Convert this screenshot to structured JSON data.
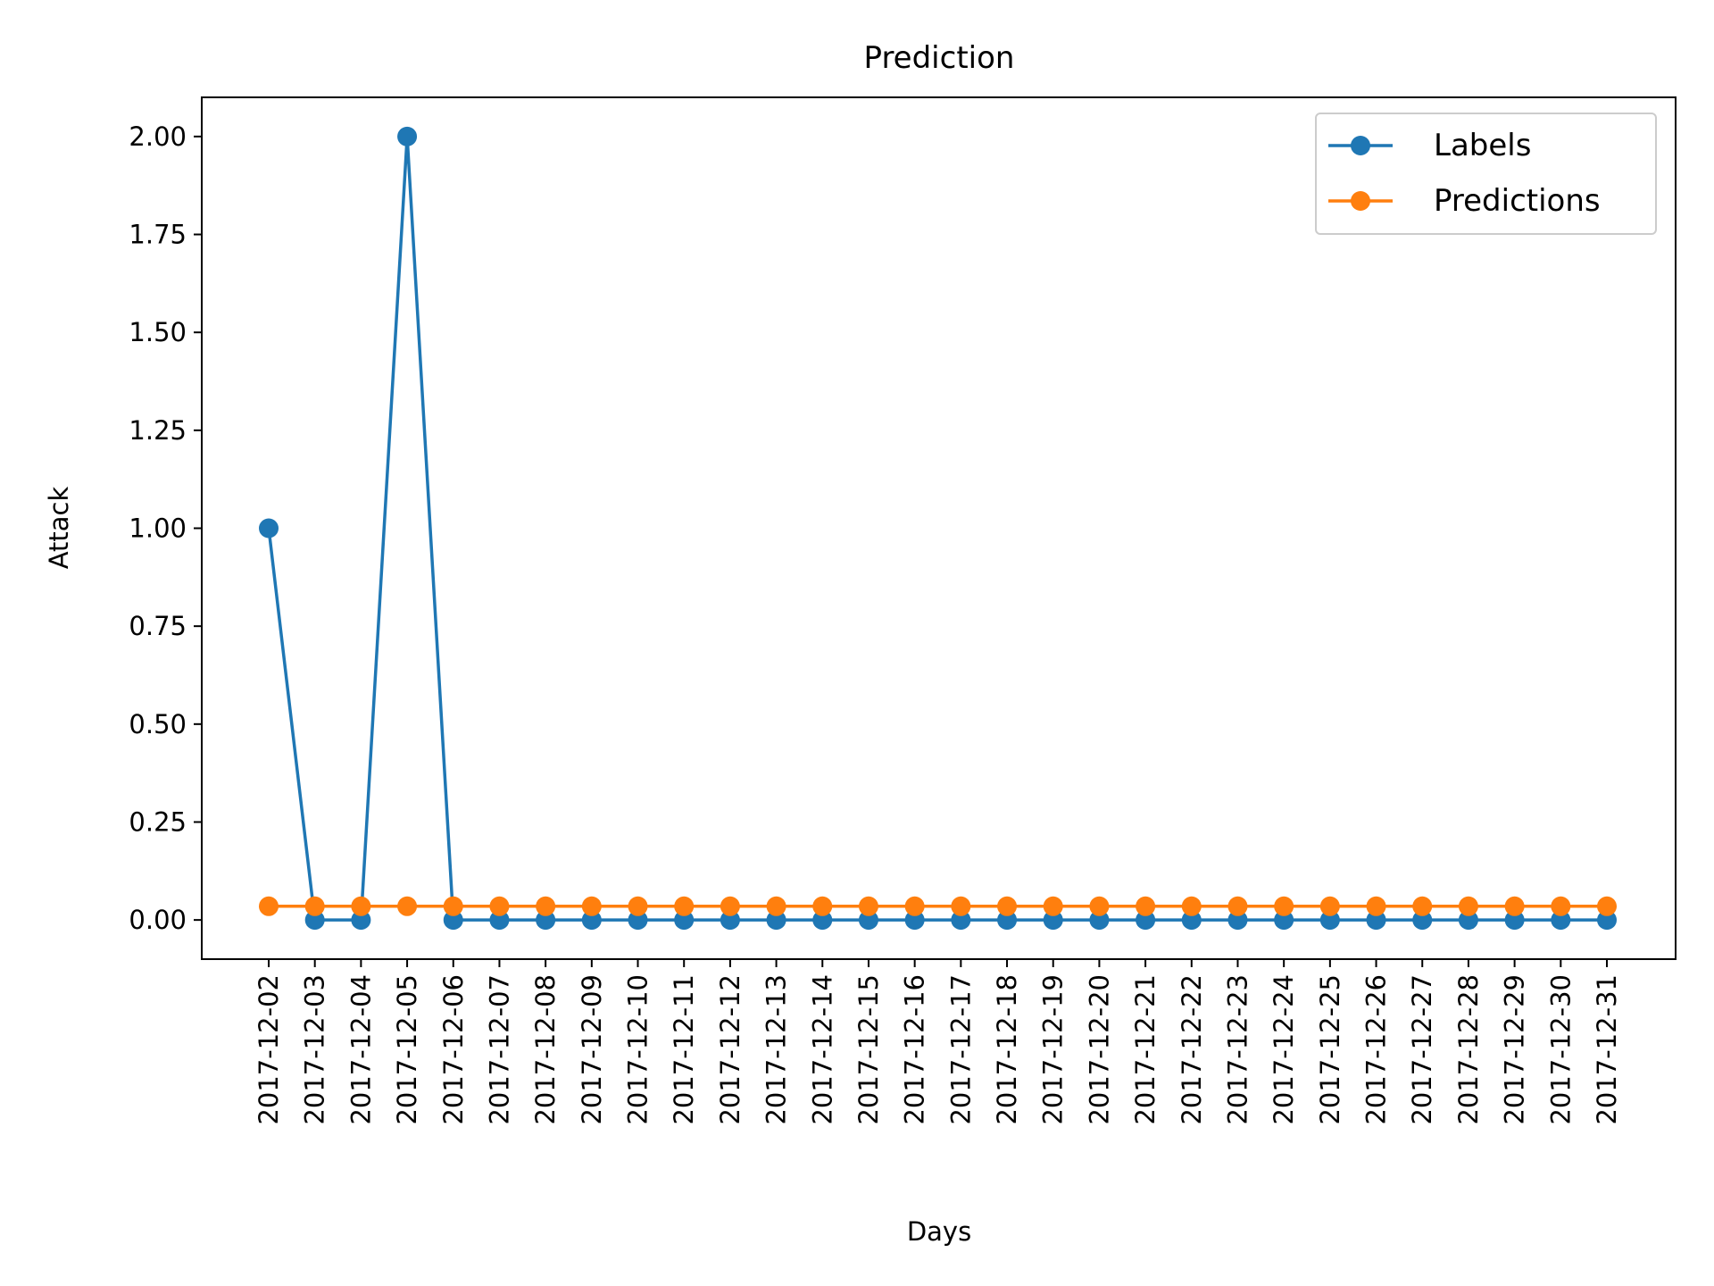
{
  "chart_data": {
    "type": "line",
    "title": "Prediction",
    "xlabel": "Days",
    "ylabel": "Attack",
    "x": [
      "2017-12-02",
      "2017-12-03",
      "2017-12-04",
      "2017-12-05",
      "2017-12-06",
      "2017-12-07",
      "2017-12-08",
      "2017-12-09",
      "2017-12-10",
      "2017-12-11",
      "2017-12-12",
      "2017-12-13",
      "2017-12-14",
      "2017-12-15",
      "2017-12-16",
      "2017-12-17",
      "2017-12-18",
      "2017-12-19",
      "2017-12-20",
      "2017-12-21",
      "2017-12-22",
      "2017-12-23",
      "2017-12-24",
      "2017-12-25",
      "2017-12-26",
      "2017-12-27",
      "2017-12-28",
      "2017-12-29",
      "2017-12-30",
      "2017-12-31"
    ],
    "series": [
      {
        "name": "Labels",
        "color": "#1f77b4",
        "values": [
          1,
          0,
          0,
          2,
          0,
          0,
          0,
          0,
          0,
          0,
          0,
          0,
          0,
          0,
          0,
          0,
          0,
          0,
          0,
          0,
          0,
          0,
          0,
          0,
          0,
          0,
          0,
          0,
          0,
          0
        ]
      },
      {
        "name": "Predictions",
        "color": "#ff7f0e",
        "values": [
          0.035,
          0.035,
          0.035,
          0.035,
          0.035,
          0.035,
          0.035,
          0.035,
          0.035,
          0.035,
          0.035,
          0.035,
          0.035,
          0.035,
          0.035,
          0.035,
          0.035,
          0.035,
          0.035,
          0.035,
          0.035,
          0.035,
          0.035,
          0.035,
          0.035,
          0.035,
          0.035,
          0.035,
          0.035,
          0.035
        ]
      }
    ],
    "ylim": [
      -0.1,
      2.1
    ],
    "yticks": [
      0.0,
      0.25,
      0.5,
      0.75,
      1.0,
      1.25,
      1.5,
      1.75,
      2.0
    ],
    "ytick_labels": [
      "0.00",
      "0.25",
      "0.50",
      "0.75",
      "1.00",
      "1.25",
      "1.50",
      "1.75",
      "2.00"
    ],
    "grid": false,
    "legend": "top-right",
    "marker": "circle"
  }
}
